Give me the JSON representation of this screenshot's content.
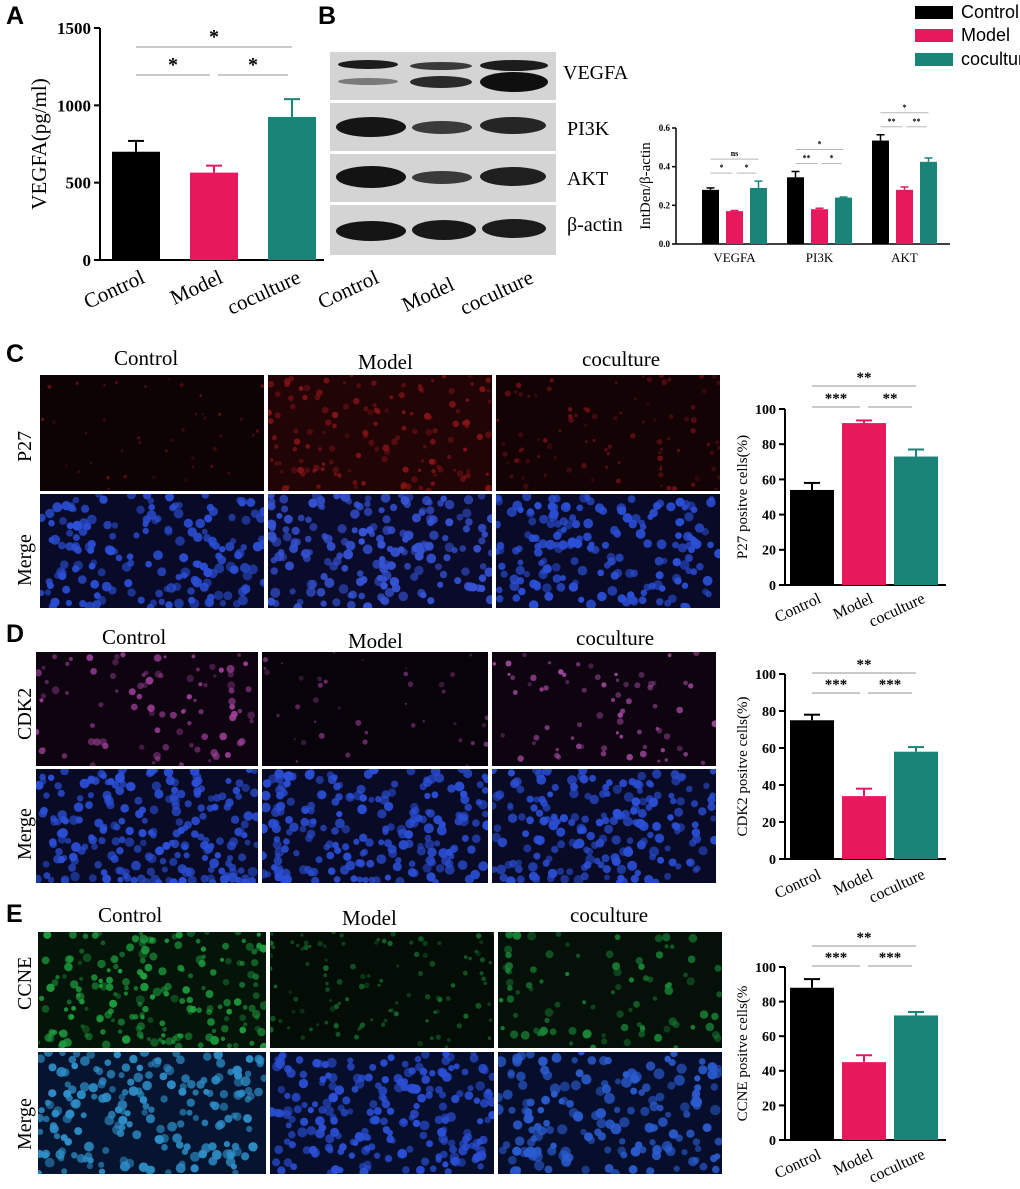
{
  "panels": {
    "a": "A",
    "b": "B",
    "c": "C",
    "d": "D",
    "e": "E"
  },
  "colors": {
    "control": "#000000",
    "model": "#e8185d",
    "coculture": "#1b8479"
  },
  "legend": [
    {
      "label": "Control",
      "color": "#000000"
    },
    {
      "label": "Model",
      "color": "#e8185d"
    },
    {
      "label": "coculture",
      "color": "#1b8479"
    }
  ],
  "panelA": {
    "chart_data": {
      "type": "bar",
      "ylabel": "VEGFA(pg/ml)",
      "categories": [
        "Control",
        "Model",
        "coculture"
      ],
      "values": [
        700,
        565,
        925
      ],
      "errors": [
        70,
        45,
        115
      ],
      "ylim": [
        0,
        1500
      ],
      "yticks": [
        "0",
        "500",
        "1000",
        "1500"
      ],
      "sig": [
        {
          "a": 0,
          "b": 2,
          "label": "*"
        },
        {
          "a": 0,
          "b": 1,
          "label": "*"
        },
        {
          "a": 1,
          "b": 2,
          "label": "*"
        }
      ]
    }
  },
  "panelB": {
    "bands": [
      "VEGFA",
      "PI3K",
      "AKT",
      "β-actin"
    ],
    "lanes": [
      "Control",
      "Model",
      "coculture"
    ],
    "chart_data": {
      "type": "bar",
      "ylabel": "IntDen/β-actin",
      "categories": [
        "VEGFA",
        "PI3K",
        "AKT"
      ],
      "series": [
        {
          "name": "Control",
          "values": [
            0.28,
            0.345,
            0.535
          ],
          "errors": [
            0.01,
            0.03,
            0.03
          ]
        },
        {
          "name": "Model",
          "values": [
            0.17,
            0.18,
            0.28
          ],
          "errors": [
            0.003,
            0.005,
            0.015
          ]
        },
        {
          "name": "coculture",
          "values": [
            0.29,
            0.24,
            0.425
          ],
          "errors": [
            0.035,
            0.003,
            0.02
          ]
        }
      ],
      "ylim": [
        0,
        0.6
      ],
      "yticks": [
        "0.0",
        "0.2",
        "0.4",
        "0.6"
      ],
      "sig": [
        [
          {
            "a": 0,
            "b": 2,
            "label": "ns"
          },
          {
            "a": 0,
            "b": 1,
            "label": "*"
          },
          {
            "a": 1,
            "b": 2,
            "label": "*"
          }
        ],
        [
          {
            "a": 0,
            "b": 2,
            "label": "*"
          },
          {
            "a": 0,
            "b": 1,
            "label": "**"
          },
          {
            "a": 1,
            "b": 2,
            "label": "*"
          }
        ],
        [
          {
            "a": 0,
            "b": 2,
            "label": "*"
          },
          {
            "a": 0,
            "b": 1,
            "label": "**"
          },
          {
            "a": 1,
            "b": 2,
            "label": "**"
          }
        ]
      ]
    }
  },
  "panelC": {
    "conditions": [
      "Control",
      "Model",
      "coculture"
    ],
    "rows": [
      "P27",
      "Merge"
    ],
    "chart_data": {
      "type": "bar",
      "ylabel": "P27 positve cells(%)",
      "categories": [
        "Control",
        "Model",
        "coculture"
      ],
      "values": [
        54,
        92,
        73
      ],
      "errors": [
        4,
        1.5,
        4
      ],
      "ylim": [
        0,
        100
      ],
      "yticks": [
        "0",
        "20",
        "40",
        "60",
        "80",
        "100"
      ],
      "sig": [
        {
          "a": 0,
          "b": 2,
          "label": "**"
        },
        {
          "a": 0,
          "b": 1,
          "label": "***"
        },
        {
          "a": 1,
          "b": 2,
          "label": "**"
        }
      ]
    }
  },
  "panelD": {
    "conditions": [
      "Control",
      "Model",
      "coculture"
    ],
    "rows": [
      "CDK2",
      "Merge"
    ],
    "chart_data": {
      "type": "bar",
      "ylabel": "CDK2 positve cells(%)",
      "categories": [
        "Control",
        "Model",
        "coculture"
      ],
      "values": [
        75,
        34,
        58
      ],
      "errors": [
        3,
        4,
        2.5
      ],
      "ylim": [
        0,
        100
      ],
      "yticks": [
        "0",
        "20",
        "40",
        "60",
        "80",
        "100"
      ],
      "sig": [
        {
          "a": 0,
          "b": 2,
          "label": "**"
        },
        {
          "a": 0,
          "b": 1,
          "label": "***"
        },
        {
          "a": 1,
          "b": 2,
          "label": "***"
        }
      ]
    }
  },
  "panelE": {
    "conditions": [
      "Control",
      "Model",
      "coculture"
    ],
    "rows": [
      "CCNE",
      "Merge"
    ],
    "chart_data": {
      "type": "bar",
      "ylabel": "CCNE positve cells(%",
      "categories": [
        "Control",
        "Model",
        "coculture"
      ],
      "values": [
        88,
        45,
        72
      ],
      "errors": [
        5,
        4,
        2
      ],
      "ylim": [
        0,
        100
      ],
      "yticks": [
        "0",
        "20",
        "40",
        "60",
        "80",
        "100"
      ],
      "sig": [
        {
          "a": 0,
          "b": 2,
          "label": "**"
        },
        {
          "a": 0,
          "b": 1,
          "label": "***"
        },
        {
          "a": 1,
          "b": 2,
          "label": "***"
        }
      ]
    }
  }
}
